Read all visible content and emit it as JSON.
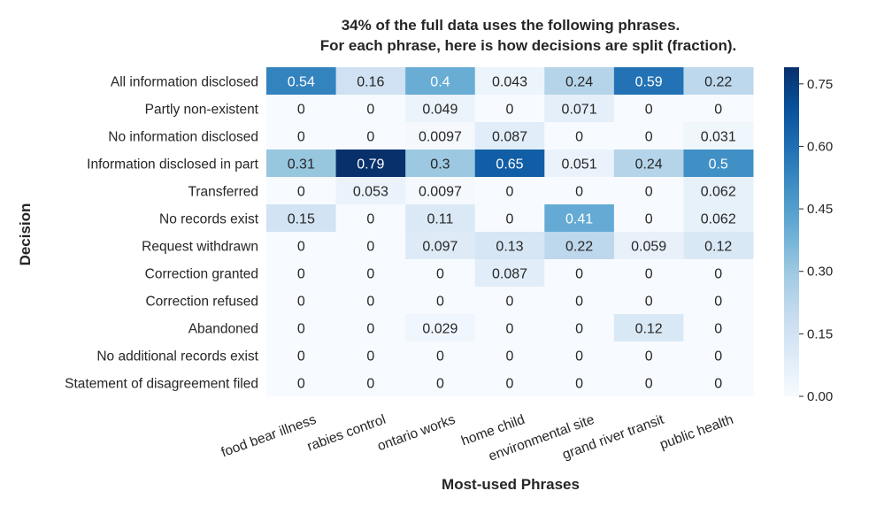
{
  "chart_data": {
    "type": "heatmap",
    "title_line1": "34% of the full data uses the following phrases.",
    "title_line2": "For each phrase, here is how decisions are split (fraction).",
    "xlabel": "Most-used Phrases",
    "ylabel": "Decision",
    "x_categories": [
      "food bear illness",
      "rabies control",
      "ontario works",
      "home child",
      "environmental site",
      "grand river transit",
      "public health"
    ],
    "y_categories": [
      "All information disclosed",
      "Partly non-existent",
      "No information disclosed",
      "Information disclosed in part",
      "Transferred",
      "No records exist",
      "Request withdrawn",
      "Correction granted",
      "Correction refused",
      "Abandoned",
      "No additional records exist",
      "Statement of disagreement filed"
    ],
    "values": [
      [
        0.54,
        0.16,
        0.4,
        0.043,
        0.24,
        0.59,
        0.22
      ],
      [
        0,
        0,
        0.049,
        0,
        0.071,
        0,
        0
      ],
      [
        0,
        0,
        0.0097,
        0.087,
        0,
        0,
        0.031
      ],
      [
        0.31,
        0.79,
        0.3,
        0.65,
        0.051,
        0.24,
        0.5
      ],
      [
        0,
        0.053,
        0.0097,
        0,
        0,
        0,
        0.062
      ],
      [
        0.15,
        0,
        0.11,
        0,
        0.41,
        0,
        0.062
      ],
      [
        0,
        0,
        0.097,
        0.13,
        0.22,
        0.059,
        0.12
      ],
      [
        0,
        0,
        0,
        0.087,
        0,
        0,
        0
      ],
      [
        0,
        0,
        0,
        0,
        0,
        0,
        0
      ],
      [
        0,
        0,
        0.029,
        0,
        0,
        0.12,
        0
      ],
      [
        0,
        0,
        0,
        0,
        0,
        0,
        0
      ],
      [
        0,
        0,
        0,
        0,
        0,
        0,
        0
      ]
    ],
    "cell_labels": [
      [
        "0.54",
        "0.16",
        "0.4",
        "0.043",
        "0.24",
        "0.59",
        "0.22"
      ],
      [
        "0",
        "0",
        "0.049",
        "0",
        "0.071",
        "0",
        "0"
      ],
      [
        "0",
        "0",
        "0.0097",
        "0.087",
        "0",
        "0",
        "0.031"
      ],
      [
        "0.31",
        "0.79",
        "0.3",
        "0.65",
        "0.051",
        "0.24",
        "0.5"
      ],
      [
        "0",
        "0.053",
        "0.0097",
        "0",
        "0",
        "0",
        "0.062"
      ],
      [
        "0.15",
        "0",
        "0.11",
        "0",
        "0.41",
        "0",
        "0.062"
      ],
      [
        "0",
        "0",
        "0.097",
        "0.13",
        "0.22",
        "0.059",
        "0.12"
      ],
      [
        "0",
        "0",
        "0",
        "0.087",
        "0",
        "0",
        "0"
      ],
      [
        "0",
        "0",
        "0",
        "0",
        "0",
        "0",
        "0"
      ],
      [
        "0",
        "0",
        "0.029",
        "0",
        "0",
        "0.12",
        "0"
      ],
      [
        "0",
        "0",
        "0",
        "0",
        "0",
        "0",
        "0"
      ],
      [
        "0",
        "0",
        "0",
        "0",
        "0",
        "0",
        "0"
      ]
    ],
    "colorbar": {
      "min": 0,
      "max": 0.79,
      "ticks": [
        0.0,
        0.15,
        0.3,
        0.45,
        0.6,
        0.75
      ],
      "tick_labels": [
        "0.00",
        "0.15",
        "0.30",
        "0.45",
        "0.60",
        "0.75"
      ],
      "colormap": "Blues",
      "colors": [
        "#f7fbff",
        "#deebf7",
        "#c6dbef",
        "#9ecae1",
        "#6baed6",
        "#4292c6",
        "#2171b5",
        "#08519c",
        "#08306b"
      ]
    },
    "text_colors": {
      "dark": "#262626",
      "light": "#ffffff"
    }
  }
}
